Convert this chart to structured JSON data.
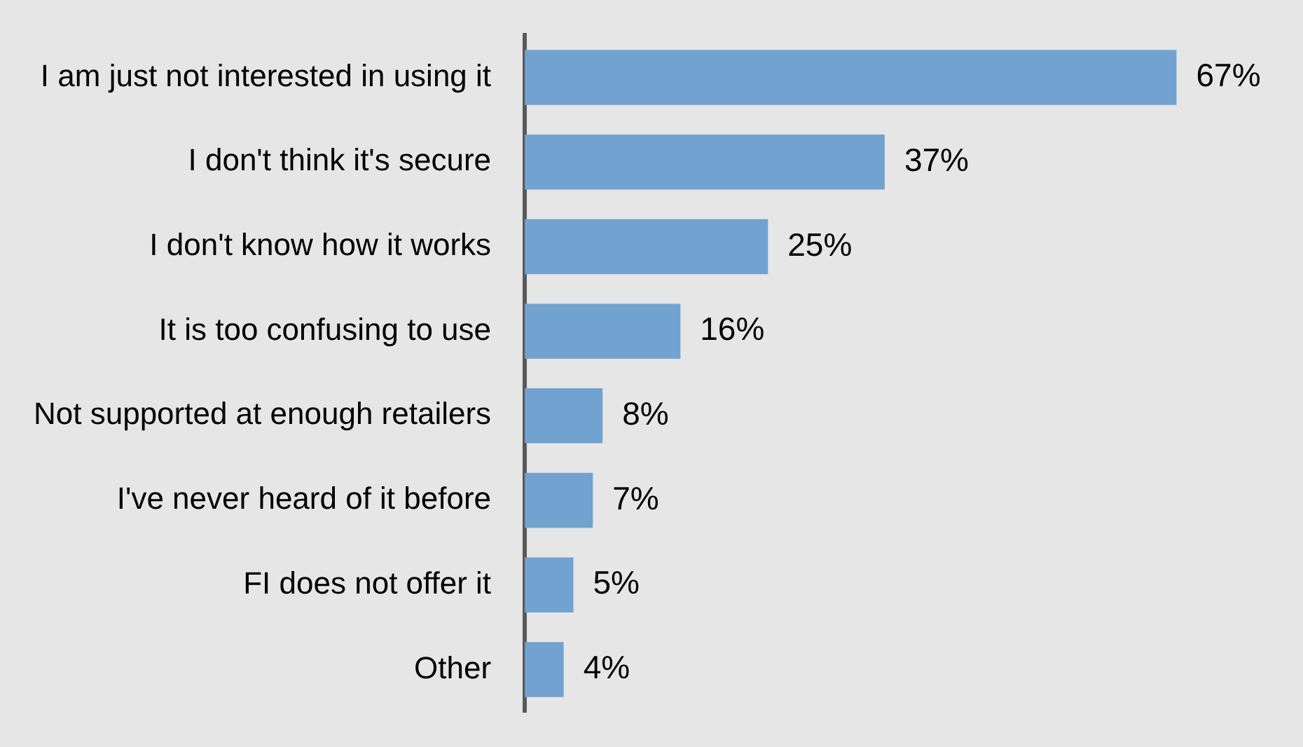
{
  "chart_data": {
    "type": "bar",
    "orientation": "horizontal",
    "categories": [
      "I am just not interested in using it",
      "I don't think it's secure",
      "I don't know how it works",
      "It is too confusing to use",
      "Not supported at enough retailers",
      "I've never heard of it before",
      "FI does not offer it",
      "Other"
    ],
    "values": [
      67,
      37,
      25,
      16,
      8,
      7,
      5,
      4
    ],
    "value_labels": [
      "67%",
      "37%",
      "25%",
      "16%",
      "8%",
      "7%",
      "5%",
      "4%"
    ],
    "color": "#72a2d0",
    "legend": false
  }
}
